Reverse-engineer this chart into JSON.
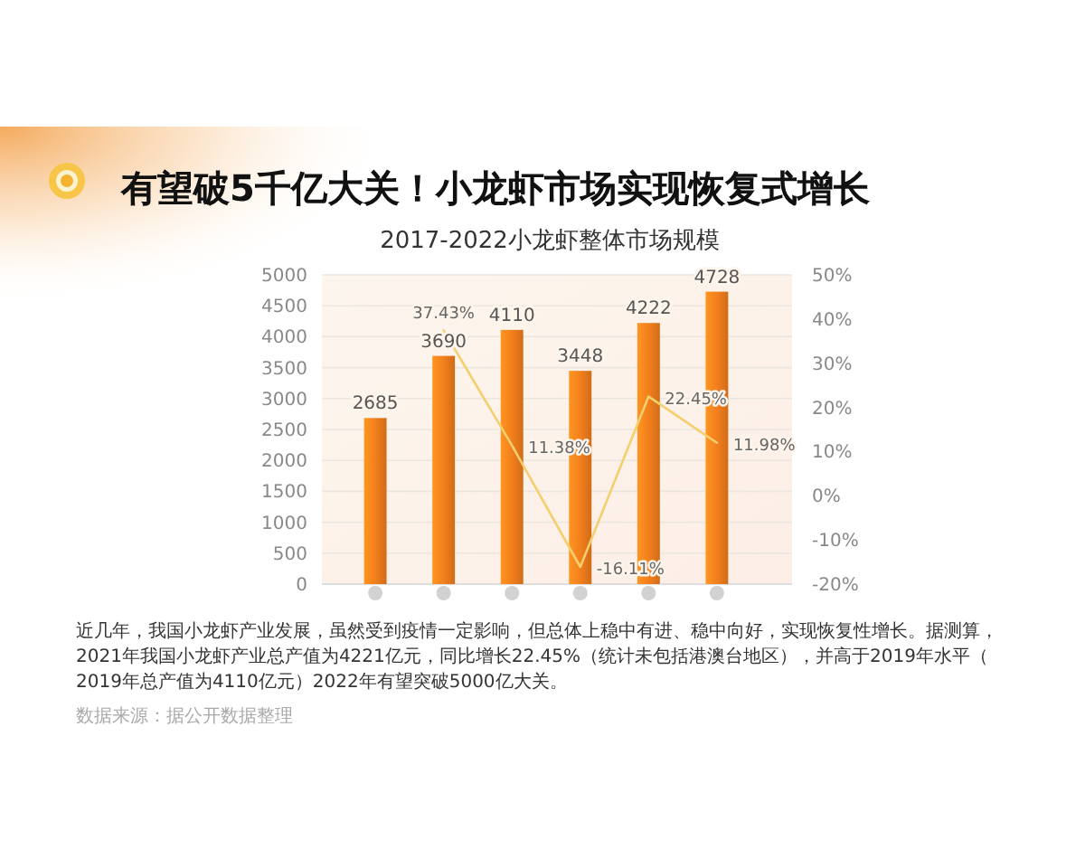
{
  "chart_data": {
    "type": "bar",
    "title": "有望破5千亿大关！小龙虾市场实现恢复式增长",
    "subtitle": "2017-2022小龙虾整体市场规模",
    "categories": [
      null,
      null,
      null,
      null,
      null,
      null
    ],
    "series": [
      {
        "color": "#f07d1c",
        "values": [
          2685,
          3690,
          4110,
          3448,
          4222,
          4728
        ],
        "value_labels": [
          "2685",
          "3690",
          "4110",
          "3448",
          "4222",
          "4728"
        ]
      },
      {
        "type": "line",
        "axis": "y2",
        "color": "#f3cf6e",
        "values": [
          null,
          37.43,
          11.38,
          -16.11,
          22.45,
          11.98
        ],
        "value_labels": [
          null,
          "37.43%",
          "11.38%",
          "-16.11%",
          "22.45%",
          "11.98%"
        ]
      }
    ],
    "ylim": [
      0,
      5000
    ],
    "yticks": [
      0,
      500,
      1000,
      1500,
      2000,
      2500,
      3000,
      3500,
      4000,
      4500,
      5000
    ],
    "y2lim": [
      -20,
      50
    ],
    "y2ticks": [
      {
        "value": -20,
        "label": "-20%"
      },
      {
        "value": -10,
        "label": "-10%"
      },
      {
        "value": 0,
        "label": "0%"
      },
      {
        "value": 10,
        "label": "10%"
      },
      {
        "value": 20,
        "label": "20%"
      },
      {
        "value": 30,
        "label": "30%"
      },
      {
        "value": 40,
        "label": "40%"
      },
      {
        "value": 50,
        "label": "50%"
      }
    ],
    "grid": "y",
    "annotations": [
      "近几年，我国小龙虾产业发展，虽然受到疫情一定影响，但总体上稳中有进、稳中向好，实现恢复性增长。据测算，2021年我国小龙虾产业总产值为4221亿元，同比增长22.45%（统计未包括港澳台地区），并高于2019年水平（2019年总产值为4110亿元）2022年有望突破5000亿大关。",
      "数据来源：据公开数据整理"
    ]
  }
}
